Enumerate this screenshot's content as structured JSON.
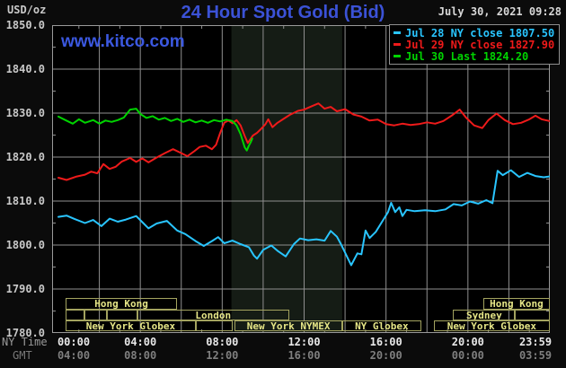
{
  "header": {
    "unit_label": "USD/oz",
    "title": "24 Hour Spot Gold (Bid)",
    "datetime": "July 30, 2021 09:28",
    "watermark": "www.kitco.com"
  },
  "axis": {
    "ny_time_label": "NY Time",
    "gmt_label": "GMT",
    "ny_ticks": [
      "00:00",
      "04:00",
      "08:00",
      "12:00",
      "16:00",
      "20:00",
      "23:59"
    ],
    "gmt_ticks": [
      "04:00",
      "08:00",
      "12:00",
      "16:00",
      "20:00",
      "00:00",
      "03:59"
    ]
  },
  "legend": [
    {
      "label": "Jul 28 NY close 1807.50",
      "color": "#29c5ff"
    },
    {
      "label": "Jul 29 NY close 1827.90",
      "color": "#ef1a1a"
    },
    {
      "label": "Jul 30 Last 1824.20",
      "color": "#00d300"
    }
  ],
  "sessions": [
    {
      "row": 1,
      "label": "Hong Kong",
      "start": 0.35,
      "end": 5.8
    },
    {
      "row": 1,
      "label": "Hong Kong",
      "start": 20.75,
      "end": 24
    },
    {
      "row": 2,
      "label": "",
      "start": 0.35,
      "end": 1.26
    },
    {
      "row": 2,
      "label": "",
      "start": 1.26,
      "end": 2.38
    },
    {
      "row": 2,
      "label": "",
      "start": 2.38,
      "end": 3.86
    },
    {
      "row": 2,
      "label": "London",
      "start": 3.86,
      "end": 11.26
    },
    {
      "row": 2,
      "label": "Sydney",
      "start": 19.28,
      "end": 22.3
    },
    {
      "row": 2,
      "label": "",
      "start": 22.3,
      "end": 24
    },
    {
      "row": 3,
      "label": "New York Globex",
      "start": 0.35,
      "end": 6.71
    },
    {
      "row": 3,
      "label": "",
      "start": 6.71,
      "end": 8.53
    },
    {
      "row": 3,
      "label": "New York NYMEX",
      "start": 8.62,
      "end": 13.86,
      "highlight": true
    },
    {
      "row": 3,
      "label": "NY Globex",
      "start": 13.86,
      "end": 17.72
    },
    {
      "row": 3,
      "label": "New York Globex",
      "start": 18.33,
      "end": 24
    }
  ],
  "colors": {
    "background": "#0b0b0b",
    "plot_background": "#000000",
    "grid": "#8f8f8f",
    "border": "#9a9a9a",
    "nymex_band": "#151c15",
    "title_blue": "#3b52d6",
    "session_text": "#e6e687",
    "session_border": "#a3a35f",
    "jul28_cyan": "#29c5ff",
    "jul29_red": "#ef1a1a",
    "jul30_green": "#00d300"
  },
  "chart_data": {
    "type": "line",
    "title": "24 Hour Spot Gold (Bid)",
    "xlabel": "NY Time (hours 00:00-23:59)",
    "ylabel": "USD/oz",
    "xlim": [
      0,
      24
    ],
    "ylim": [
      1780,
      1850
    ],
    "y_ticks": [
      1850,
      1840,
      1830,
      1820,
      1810,
      1800,
      1790,
      1780
    ],
    "grid": true,
    "legend_position": "top-right",
    "band": {
      "label": "New York NYMEX",
      "start": 8.45,
      "end": 13.86
    },
    "series": [
      {
        "name": "Jul 28 (NY close 1807.50)",
        "color": "#29c5ff",
        "points": [
          [
            0,
            1806.4
          ],
          [
            0.4,
            1806.7
          ],
          [
            0.8,
            1805.9
          ],
          [
            1.3,
            1805.0
          ],
          [
            1.7,
            1805.7
          ],
          [
            2.1,
            1804.3
          ],
          [
            2.5,
            1806.0
          ],
          [
            2.9,
            1805.3
          ],
          [
            3.3,
            1805.8
          ],
          [
            3.8,
            1806.6
          ],
          [
            4.1,
            1805.2
          ],
          [
            4.4,
            1803.8
          ],
          [
            4.8,
            1804.9
          ],
          [
            5.3,
            1805.5
          ],
          [
            5.8,
            1803.3
          ],
          [
            6.2,
            1802.5
          ],
          [
            6.7,
            1800.9
          ],
          [
            7.1,
            1799.8
          ],
          [
            7.5,
            1800.9
          ],
          [
            7.8,
            1801.8
          ],
          [
            8.1,
            1800.4
          ],
          [
            8.5,
            1801.0
          ],
          [
            8.9,
            1800.2
          ],
          [
            9.3,
            1799.5
          ],
          [
            9.55,
            1797.6
          ],
          [
            9.7,
            1796.9
          ],
          [
            10.0,
            1798.9
          ],
          [
            10.4,
            1799.9
          ],
          [
            10.7,
            1798.7
          ],
          [
            11.1,
            1797.4
          ],
          [
            11.5,
            1800.2
          ],
          [
            11.8,
            1801.5
          ],
          [
            12.2,
            1801.1
          ],
          [
            12.6,
            1801.3
          ],
          [
            13.0,
            1801.0
          ],
          [
            13.3,
            1803.2
          ],
          [
            13.6,
            1801.9
          ],
          [
            13.8,
            1800.2
          ],
          [
            14.3,
            1795.4
          ],
          [
            14.6,
            1798.1
          ],
          [
            14.8,
            1797.9
          ],
          [
            15.0,
            1803.3
          ],
          [
            15.2,
            1801.6
          ],
          [
            15.5,
            1803.0
          ],
          [
            15.9,
            1806.0
          ],
          [
            16.1,
            1807.5
          ],
          [
            16.25,
            1809.6
          ],
          [
            16.45,
            1807.5
          ],
          [
            16.65,
            1808.6
          ],
          [
            16.8,
            1806.6
          ],
          [
            17.0,
            1808.0
          ],
          [
            17.4,
            1807.7
          ],
          [
            17.9,
            1807.9
          ],
          [
            18.4,
            1807.7
          ],
          [
            18.9,
            1808.1
          ],
          [
            19.3,
            1809.3
          ],
          [
            19.7,
            1809.0
          ],
          [
            20.1,
            1809.9
          ],
          [
            20.5,
            1809.4
          ],
          [
            20.9,
            1810.2
          ],
          [
            21.2,
            1809.5
          ],
          [
            21.45,
            1816.9
          ],
          [
            21.7,
            1815.9
          ],
          [
            22.1,
            1817.0
          ],
          [
            22.5,
            1815.5
          ],
          [
            22.9,
            1816.4
          ],
          [
            23.3,
            1815.7
          ],
          [
            23.7,
            1815.4
          ],
          [
            23.98,
            1815.6
          ]
        ]
      },
      {
        "name": "Jul 29 (NY close 1827.90)",
        "color": "#ef1a1a",
        "points": [
          [
            0,
            1815.3
          ],
          [
            0.4,
            1814.8
          ],
          [
            0.9,
            1815.6
          ],
          [
            1.3,
            1816.0
          ],
          [
            1.6,
            1816.7
          ],
          [
            1.9,
            1816.3
          ],
          [
            2.2,
            1818.4
          ],
          [
            2.5,
            1817.3
          ],
          [
            2.8,
            1817.8
          ],
          [
            3.1,
            1819.0
          ],
          [
            3.5,
            1819.8
          ],
          [
            3.8,
            1818.9
          ],
          [
            4.1,
            1819.7
          ],
          [
            4.4,
            1818.8
          ],
          [
            4.8,
            1819.9
          ],
          [
            5.2,
            1820.9
          ],
          [
            5.6,
            1821.8
          ],
          [
            6.0,
            1820.9
          ],
          [
            6.3,
            1820.2
          ],
          [
            6.6,
            1821.2
          ],
          [
            6.9,
            1822.3
          ],
          [
            7.2,
            1822.6
          ],
          [
            7.5,
            1821.8
          ],
          [
            7.7,
            1822.8
          ],
          [
            7.9,
            1825.5
          ],
          [
            8.1,
            1827.8
          ],
          [
            8.3,
            1828.3
          ],
          [
            8.5,
            1827.7
          ],
          [
            8.7,
            1828.4
          ],
          [
            8.9,
            1827.2
          ],
          [
            9.1,
            1824.8
          ],
          [
            9.25,
            1823.2
          ],
          [
            9.5,
            1824.9
          ],
          [
            9.7,
            1825.5
          ],
          [
            9.9,
            1826.4
          ],
          [
            10.1,
            1827.4
          ],
          [
            10.25,
            1828.6
          ],
          [
            10.45,
            1826.8
          ],
          [
            10.7,
            1827.8
          ],
          [
            11.0,
            1828.7
          ],
          [
            11.3,
            1829.6
          ],
          [
            11.7,
            1830.5
          ],
          [
            12.0,
            1830.8
          ],
          [
            12.3,
            1831.4
          ],
          [
            12.7,
            1832.2
          ],
          [
            13.0,
            1831.0
          ],
          [
            13.3,
            1831.4
          ],
          [
            13.6,
            1830.4
          ],
          [
            14.0,
            1830.9
          ],
          [
            14.4,
            1829.7
          ],
          [
            14.8,
            1829.2
          ],
          [
            15.2,
            1828.3
          ],
          [
            15.6,
            1828.5
          ],
          [
            16.0,
            1827.5
          ],
          [
            16.4,
            1827.2
          ],
          [
            16.8,
            1827.6
          ],
          [
            17.2,
            1827.3
          ],
          [
            17.6,
            1827.5
          ],
          [
            18.0,
            1827.9
          ],
          [
            18.4,
            1827.6
          ],
          [
            18.8,
            1828.2
          ],
          [
            19.2,
            1829.4
          ],
          [
            19.6,
            1830.8
          ],
          [
            19.9,
            1829.0
          ],
          [
            20.3,
            1827.2
          ],
          [
            20.7,
            1826.6
          ],
          [
            21.0,
            1828.4
          ],
          [
            21.4,
            1829.9
          ],
          [
            21.8,
            1828.4
          ],
          [
            22.2,
            1827.5
          ],
          [
            22.6,
            1827.8
          ],
          [
            23.0,
            1828.6
          ],
          [
            23.3,
            1829.4
          ],
          [
            23.6,
            1828.6
          ],
          [
            23.98,
            1828.2
          ]
        ]
      },
      {
        "name": "Jul 30 (Last 1824.20)",
        "color": "#00d300",
        "points": [
          [
            0,
            1829.2
          ],
          [
            0.3,
            1828.5
          ],
          [
            0.7,
            1827.6
          ],
          [
            1.0,
            1828.6
          ],
          [
            1.3,
            1827.8
          ],
          [
            1.7,
            1828.4
          ],
          [
            2.0,
            1827.6
          ],
          [
            2.3,
            1828.3
          ],
          [
            2.6,
            1828.0
          ],
          [
            2.9,
            1828.4
          ],
          [
            3.2,
            1829.0
          ],
          [
            3.5,
            1830.8
          ],
          [
            3.8,
            1831.0
          ],
          [
            4.0,
            1829.8
          ],
          [
            4.3,
            1828.9
          ],
          [
            4.6,
            1829.3
          ],
          [
            4.9,
            1828.5
          ],
          [
            5.2,
            1828.9
          ],
          [
            5.5,
            1828.2
          ],
          [
            5.8,
            1828.7
          ],
          [
            6.1,
            1828.0
          ],
          [
            6.4,
            1828.5
          ],
          [
            6.7,
            1827.9
          ],
          [
            7.0,
            1828.3
          ],
          [
            7.3,
            1827.8
          ],
          [
            7.6,
            1828.4
          ],
          [
            7.9,
            1828.1
          ],
          [
            8.2,
            1828.5
          ],
          [
            8.5,
            1828.2
          ],
          [
            8.7,
            1827.2
          ],
          [
            8.9,
            1825.2
          ],
          [
            9.1,
            1822.2
          ],
          [
            9.2,
            1821.5
          ],
          [
            9.3,
            1822.6
          ],
          [
            9.4,
            1823.4
          ],
          [
            9.47,
            1824.2
          ]
        ]
      }
    ]
  }
}
